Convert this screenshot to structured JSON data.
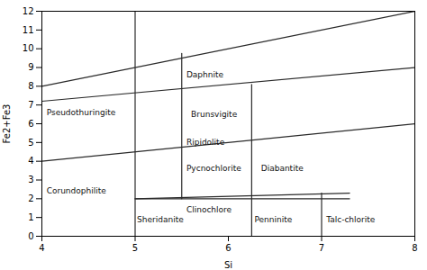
{
  "chart_data": {
    "type": "line",
    "xlabel": "Si",
    "ylabel": "Fe2+Fe3",
    "xlim": [
      4,
      8
    ],
    "ylim": [
      0,
      12
    ],
    "xticks": [
      4,
      5,
      6,
      7,
      8
    ],
    "yticks": [
      0,
      1,
      2,
      3,
      4,
      5,
      6,
      7,
      8,
      9,
      10,
      11,
      12
    ],
    "grid": false,
    "color": "#2a2a2a",
    "segments": [
      {
        "x": [
          4,
          8
        ],
        "y": [
          8,
          12
        ]
      },
      {
        "x": [
          4,
          8
        ],
        "y": [
          7.2,
          9.0
        ]
      },
      {
        "x": [
          4,
          8
        ],
        "y": [
          4.0,
          6.0
        ]
      },
      {
        "x": [
          5.0,
          7.3
        ],
        "y": [
          2.0,
          2.3
        ]
      },
      {
        "x": [
          5.0,
          5.0
        ],
        "y": [
          0,
          12
        ]
      },
      {
        "x": [
          5.5,
          5.5
        ],
        "y": [
          2.0,
          9.75
        ]
      },
      {
        "x": [
          6.25,
          6.25
        ],
        "y": [
          0,
          8.1
        ]
      },
      {
        "x": [
          7.0,
          7.0
        ],
        "y": [
          0,
          2.3
        ]
      },
      {
        "x": [
          5.0,
          7.3
        ],
        "y": [
          2.0,
          2.0
        ]
      }
    ],
    "annotations": [
      {
        "text": "Daphnite",
        "x": 5.55,
        "y": 8.6
      },
      {
        "text": "Pseudothuringite",
        "x": 4.05,
        "y": 6.6
      },
      {
        "text": "Brunsvigite",
        "x": 5.6,
        "y": 6.5
      },
      {
        "text": "Ripidolite",
        "x": 5.55,
        "y": 5.0
      },
      {
        "text": "Pycnochlorite",
        "x": 5.55,
        "y": 3.6
      },
      {
        "text": "Diabantite",
        "x": 6.35,
        "y": 3.6
      },
      {
        "text": "Corundophilite",
        "x": 4.05,
        "y": 2.4
      },
      {
        "text": "Sheridanite",
        "x": 5.02,
        "y": 0.9
      },
      {
        "text": "Clinochlore",
        "x": 5.55,
        "y": 1.4
      },
      {
        "text": "Penninite",
        "x": 6.28,
        "y": 0.9
      },
      {
        "text": "Talc-chlorite",
        "x": 7.05,
        "y": 0.9
      }
    ]
  }
}
